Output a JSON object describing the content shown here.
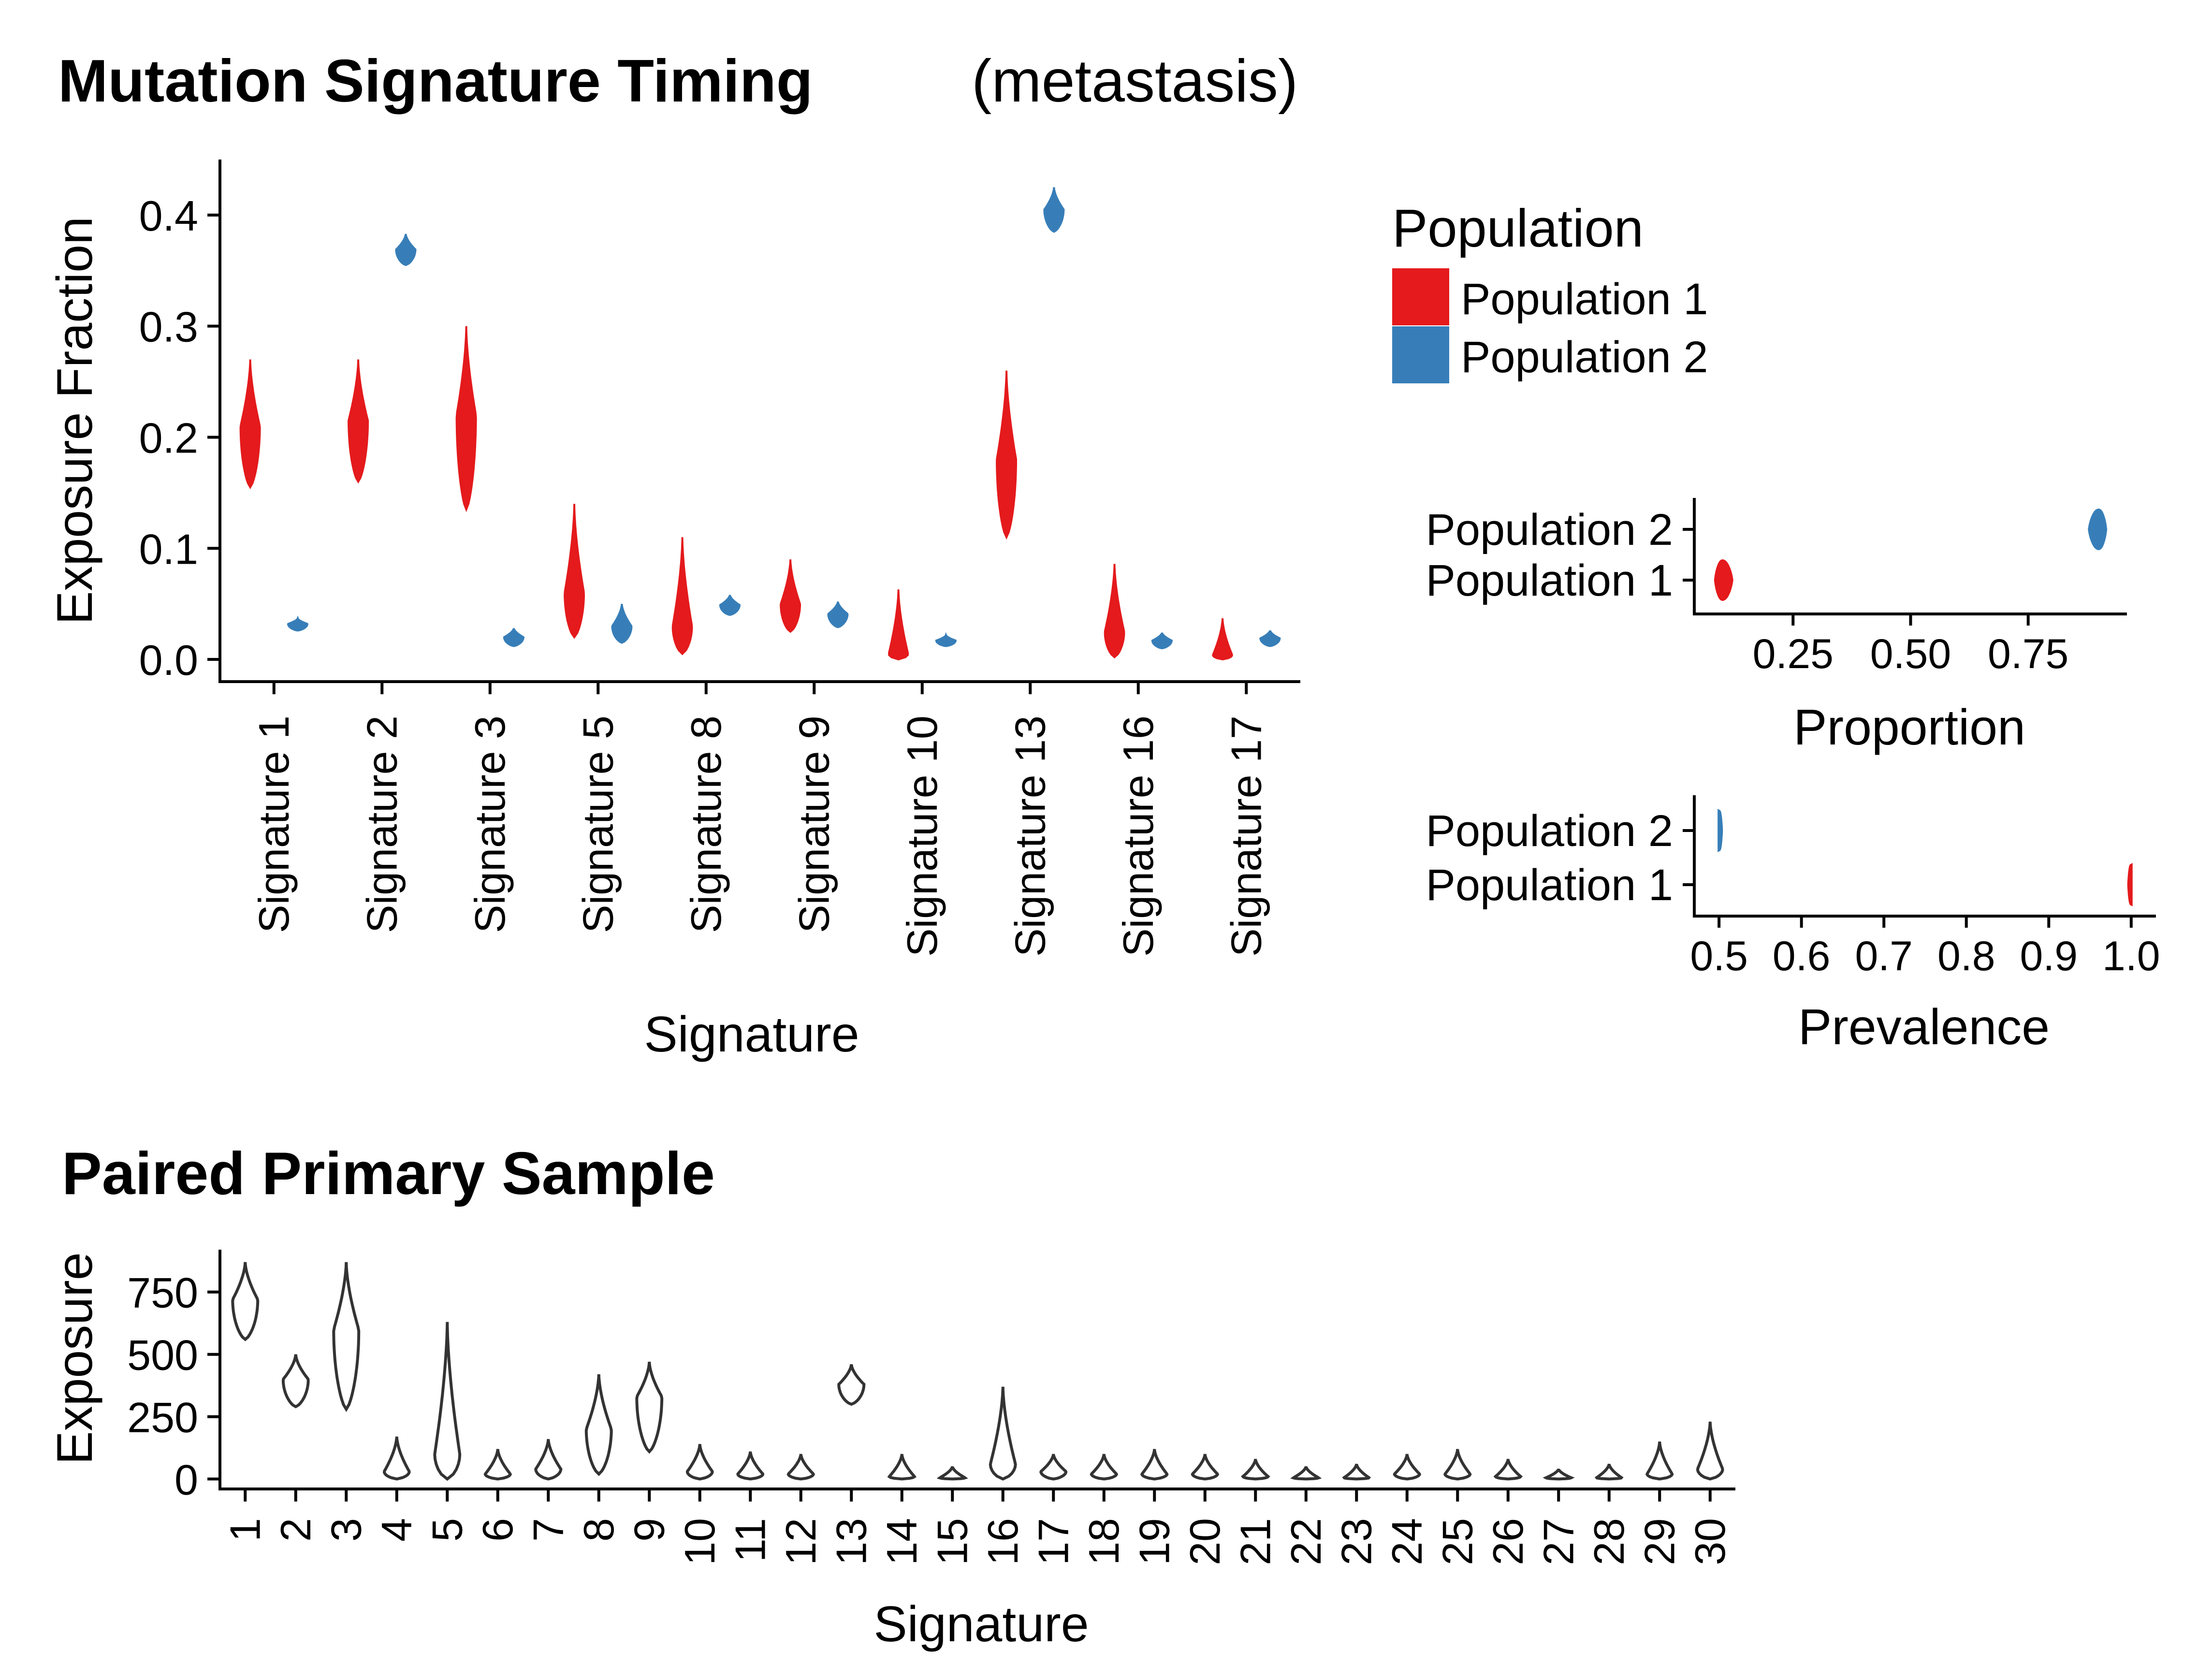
{
  "colors": {
    "population_1": "#E41A1C",
    "population_2": "#377EB8",
    "violin_outline": "#333333"
  },
  "chart_data": [
    {
      "id": "timing",
      "type": "violin",
      "title": "Mutation Signature Timing",
      "subtitle": "(metastasis)",
      "xlabel": "Signature",
      "ylabel": "Exposure Fraction",
      "ylim": [
        -0.02,
        0.45
      ],
      "yticks": [
        0.0,
        0.1,
        0.2,
        0.3,
        0.4
      ],
      "ytick_labels": [
        "0.0",
        "0.1",
        "0.2",
        "0.3",
        "0.4"
      ],
      "categories": [
        "Signature 1",
        "Signature 2",
        "Signature 3",
        "Signature 5",
        "Signature 8",
        "Signature 9",
        "Signature 10",
        "Signature 13",
        "Signature 16",
        "Signature 17"
      ],
      "legend": {
        "title": "Population",
        "position": "right",
        "entries": [
          "Population 1",
          "Population 2"
        ]
      },
      "series": [
        {
          "name": "Population 1",
          "color": "#E41A1C",
          "violins": [
            {
              "min": 0.155,
              "max": 0.27,
              "peak": 0.21
            },
            {
              "min": 0.16,
              "max": 0.27,
              "peak": 0.215
            },
            {
              "min": 0.135,
              "max": 0.3,
              "peak": 0.22
            },
            {
              "min": 0.02,
              "max": 0.14,
              "peak": 0.06
            },
            {
              "min": 0.005,
              "max": 0.11,
              "peak": 0.03
            },
            {
              "min": 0.025,
              "max": 0.09,
              "peak": 0.05
            },
            {
              "min": 0.0,
              "max": 0.063,
              "peak": 0.005
            },
            {
              "min": 0.11,
              "max": 0.26,
              "peak": 0.18
            },
            {
              "min": 0.002,
              "max": 0.086,
              "peak": 0.025
            },
            {
              "min": 0.0,
              "max": 0.037,
              "peak": 0.004
            }
          ]
        },
        {
          "name": "Population 2",
          "color": "#377EB8",
          "violins": [
            {
              "min": 0.026,
              "max": 0.037,
              "peak": 0.032
            },
            {
              "min": 0.355,
              "max": 0.383,
              "peak": 0.369
            },
            {
              "min": 0.012,
              "max": 0.028,
              "peak": 0.02
            },
            {
              "min": 0.015,
              "max": 0.05,
              "peak": 0.03
            },
            {
              "min": 0.04,
              "max": 0.058,
              "peak": 0.049
            },
            {
              "min": 0.029,
              "max": 0.052,
              "peak": 0.041
            },
            {
              "min": 0.012,
              "max": 0.022,
              "peak": 0.017
            },
            {
              "min": 0.385,
              "max": 0.425,
              "peak": 0.405
            },
            {
              "min": 0.01,
              "max": 0.024,
              "peak": 0.017
            },
            {
              "min": 0.012,
              "max": 0.026,
              "peak": 0.019
            }
          ]
        }
      ]
    },
    {
      "id": "proportion",
      "type": "violin",
      "title": "",
      "xlabel": "Proportion",
      "ylabel": "",
      "xlim": [
        0.04,
        0.96
      ],
      "xticks": [
        0.25,
        0.5,
        0.75
      ],
      "xtick_labels": [
        "0.25",
        "0.50",
        "0.75"
      ],
      "categories": [
        "Population 1",
        "Population 2"
      ],
      "series": [
        {
          "name": "Population 1",
          "color": "#E41A1C",
          "violin": {
            "min": 0.085,
            "max": 0.12,
            "peak": 0.1
          }
        },
        {
          "name": "Population 2",
          "color": "#377EB8",
          "violin": {
            "min": 0.88,
            "max": 0.915,
            "peak": 0.9
          }
        }
      ]
    },
    {
      "id": "prevalence",
      "type": "violin",
      "title": "",
      "xlabel": "Prevalence",
      "ylabel": "",
      "xlim": [
        0.47,
        1.03
      ],
      "xticks": [
        0.5,
        0.6,
        0.7,
        0.8,
        0.9,
        1.0
      ],
      "xtick_labels": [
        "0.5",
        "0.6",
        "0.7",
        "0.8",
        "0.9",
        "1.0"
      ],
      "categories": [
        "Population 1",
        "Population 2"
      ],
      "series": [
        {
          "name": "Population 1",
          "color": "#E41A1C",
          "violin": {
            "min": 0.997,
            "max": 1.0,
            "peak": 1.0
          }
        },
        {
          "name": "Population 2",
          "color": "#377EB8",
          "violin": {
            "min": 0.5,
            "max": 0.503,
            "peak": 0.5
          }
        }
      ]
    },
    {
      "id": "primary",
      "type": "violin",
      "title": "Paired Primary Sample",
      "xlabel": "Signature",
      "ylabel": "Exposure",
      "ylim": [
        -40,
        920
      ],
      "yticks": [
        0,
        250,
        500,
        750
      ],
      "ytick_labels": [
        "0",
        "250",
        "500",
        "750"
      ],
      "categories": [
        "1",
        "2",
        "3",
        "4",
        "5",
        "6",
        "7",
        "8",
        "9",
        "10",
        "11",
        "12",
        "13",
        "14",
        "15",
        "16",
        "17",
        "18",
        "19",
        "20",
        "21",
        "22",
        "23",
        "24",
        "25",
        "26",
        "27",
        "28",
        "29",
        "30"
      ],
      "series": [
        {
          "name": "",
          "color": "#333333",
          "violins": [
            {
              "min": 560,
              "max": 870,
              "peak": 720
            },
            {
              "min": 290,
              "max": 500,
              "peak": 400
            },
            {
              "min": 280,
              "max": 870,
              "peak": 600
            },
            {
              "min": 0,
              "max": 170,
              "peak": 30
            },
            {
              "min": 0,
              "max": 630,
              "peak": 100
            },
            {
              "min": 0,
              "max": 120,
              "peak": 20
            },
            {
              "min": 0,
              "max": 160,
              "peak": 40
            },
            {
              "min": 20,
              "max": 420,
              "peak": 200
            },
            {
              "min": 110,
              "max": 470,
              "peak": 330
            },
            {
              "min": 0,
              "max": 140,
              "peak": 30
            },
            {
              "min": 0,
              "max": 110,
              "peak": 20
            },
            {
              "min": 0,
              "max": 100,
              "peak": 20
            },
            {
              "min": 300,
              "max": 460,
              "peak": 380
            },
            {
              "min": 0,
              "max": 100,
              "peak": 10
            },
            {
              "min": 0,
              "max": 50,
              "peak": 5
            },
            {
              "min": 0,
              "max": 370,
              "peak": 60
            },
            {
              "min": 0,
              "max": 100,
              "peak": 30
            },
            {
              "min": 0,
              "max": 100,
              "peak": 20
            },
            {
              "min": 0,
              "max": 120,
              "peak": 20
            },
            {
              "min": 0,
              "max": 100,
              "peak": 20
            },
            {
              "min": 0,
              "max": 80,
              "peak": 10
            },
            {
              "min": 0,
              "max": 50,
              "peak": 5
            },
            {
              "min": 0,
              "max": 60,
              "peak": 5
            },
            {
              "min": 0,
              "max": 100,
              "peak": 20
            },
            {
              "min": 0,
              "max": 120,
              "peak": 20
            },
            {
              "min": 0,
              "max": 80,
              "peak": 10
            },
            {
              "min": 0,
              "max": 40,
              "peak": 5
            },
            {
              "min": 0,
              "max": 60,
              "peak": 5
            },
            {
              "min": 0,
              "max": 150,
              "peak": 20
            },
            {
              "min": 0,
              "max": 230,
              "peak": 40
            }
          ]
        }
      ]
    }
  ]
}
